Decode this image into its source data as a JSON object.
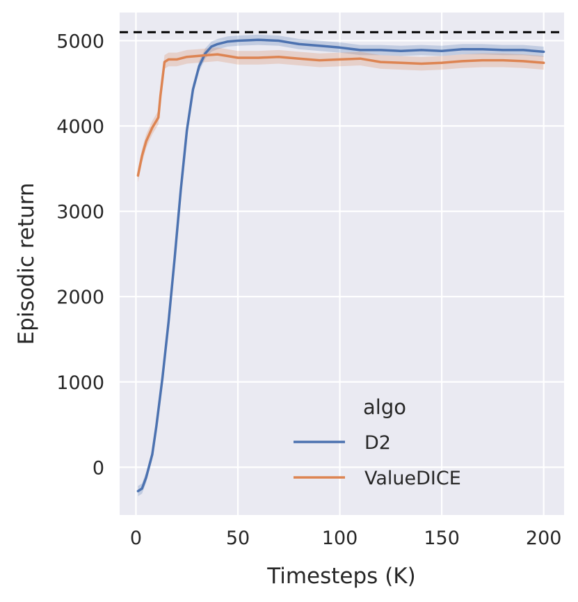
{
  "chart_data": {
    "type": "line",
    "title": "",
    "xlabel": "Timesteps (K)",
    "ylabel": "Episodic return",
    "xlim": [
      -8,
      210
    ],
    "ylim": [
      -560,
      5330
    ],
    "xticks": [
      0,
      50,
      100,
      150,
      200
    ],
    "yticks": [
      0,
      1000,
      2000,
      3000,
      4000,
      5000
    ],
    "grid": true,
    "background": "#eaeaf2",
    "reference_line": {
      "y": 5100,
      "style": "dashed",
      "color": "#000000"
    },
    "legend": {
      "title": "algo",
      "position": "lower-right"
    },
    "series": [
      {
        "name": "D2",
        "color": "#4c72b0",
        "x": [
          1,
          3,
          5,
          8,
          10,
          13,
          16,
          19,
          22,
          25,
          28,
          31,
          34,
          37,
          40,
          45,
          50,
          60,
          70,
          80,
          90,
          100,
          110,
          120,
          130,
          140,
          150,
          160,
          170,
          180,
          190,
          200
        ],
        "y": [
          -280,
          -250,
          -120,
          150,
          480,
          1050,
          1700,
          2450,
          3250,
          3950,
          4430,
          4700,
          4850,
          4930,
          4960,
          4990,
          5000,
          5010,
          5000,
          4960,
          4940,
          4920,
          4890,
          4890,
          4880,
          4890,
          4880,
          4900,
          4900,
          4890,
          4890,
          4870
        ],
        "band": 60
      },
      {
        "name": "ValueDICE",
        "color": "#dd8452",
        "x": [
          1,
          3,
          5,
          8,
          11,
          12,
          14,
          16,
          20,
          25,
          30,
          35,
          40,
          45,
          50,
          60,
          70,
          80,
          90,
          100,
          110,
          120,
          130,
          140,
          150,
          160,
          170,
          180,
          190,
          200
        ],
        "y": [
          3420,
          3650,
          3820,
          3980,
          4100,
          4350,
          4750,
          4780,
          4780,
          4810,
          4820,
          4830,
          4840,
          4820,
          4800,
          4800,
          4810,
          4790,
          4770,
          4780,
          4790,
          4750,
          4740,
          4730,
          4740,
          4760,
          4770,
          4770,
          4760,
          4740
        ],
        "band": 80
      }
    ]
  }
}
